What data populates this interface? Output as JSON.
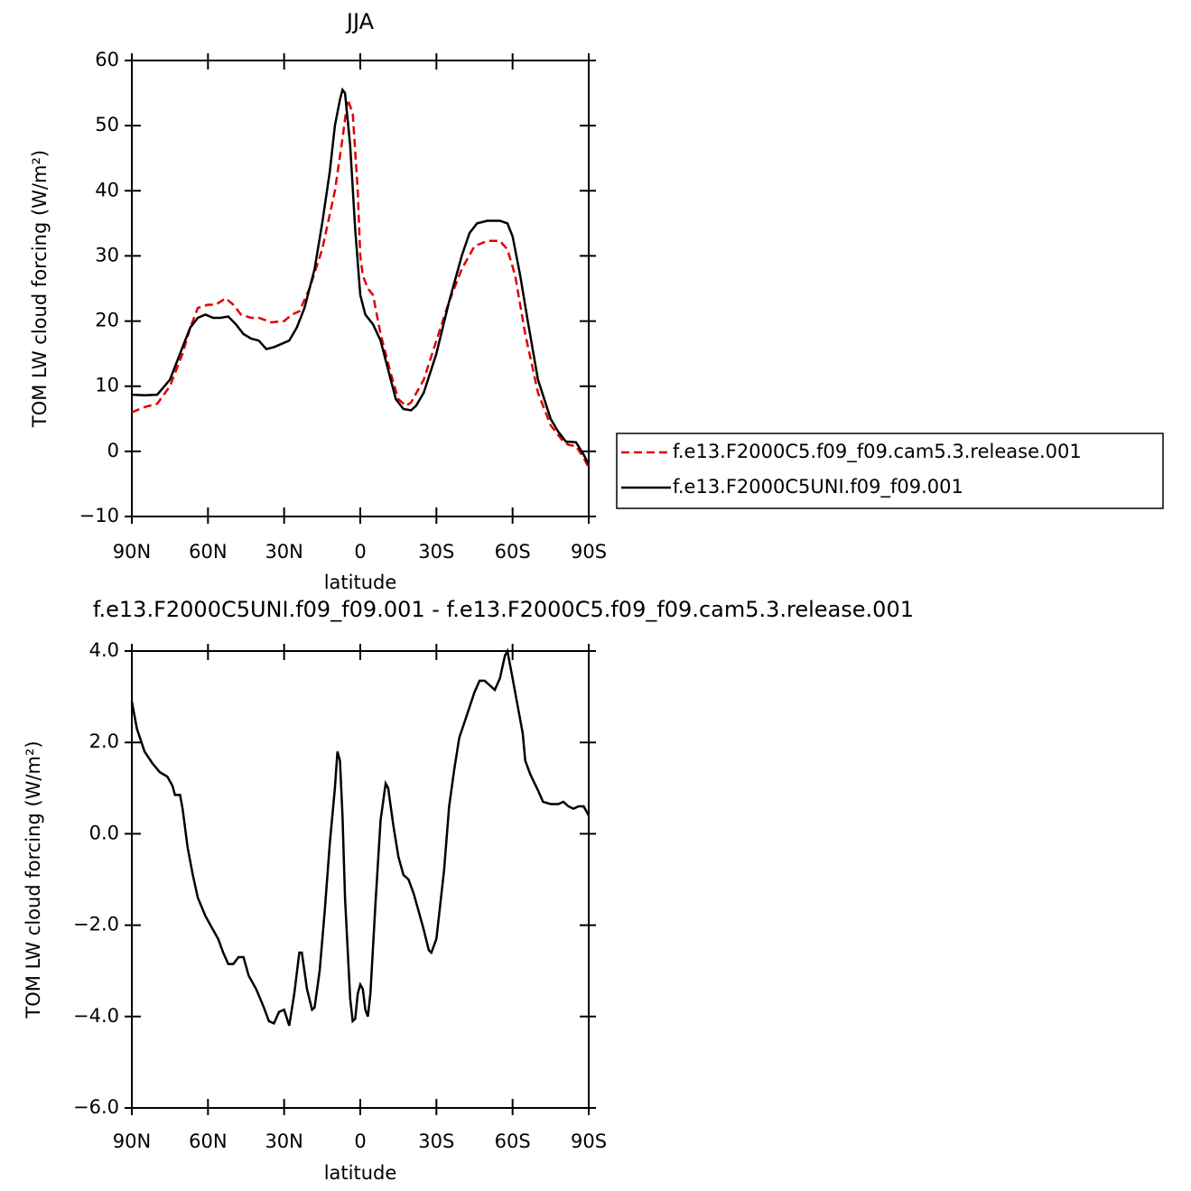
{
  "chart_data": [
    {
      "type": "line",
      "title": "JJA",
      "x_label": "latitude",
      "y_label": "TOM LW cloud forcing (W/m²)",
      "xlim": [
        90,
        -90
      ],
      "xticks": [
        {
          "value": 90,
          "label": "90N"
        },
        {
          "value": 60,
          "label": "60N"
        },
        {
          "value": 30,
          "label": "30N"
        },
        0,
        {
          "value": -30,
          "label": "30S"
        },
        {
          "value": -60,
          "label": "60S"
        },
        {
          "value": -90,
          "label": "90S"
        }
      ],
      "ylim": [
        -10,
        60
      ],
      "yticks": [
        {
          "value": -10,
          "label": "−10"
        },
        0,
        10,
        20,
        30,
        40,
        50,
        60
      ],
      "legend": "right",
      "series": [
        {
          "name": "f.e13.F2000C5.f09_f09.cam5.3.release.001",
          "color": "#e00000",
          "dash": true,
          "x": [
            90,
            85,
            80,
            75,
            70,
            67,
            64,
            60,
            57,
            53,
            50,
            47,
            43,
            40,
            35,
            30,
            27,
            24,
            20,
            15,
            10,
            7,
            5,
            3,
            1,
            0,
            -1,
            -3,
            -5,
            -8,
            -12,
            -15,
            -18,
            -20,
            -25,
            -30,
            -35,
            -40,
            -45,
            -50,
            -55,
            -58,
            -61,
            -65,
            -70,
            -75,
            -80,
            -82,
            -85,
            -88,
            -90
          ],
          "values": [
            6,
            6.8,
            7.3,
            10,
            15,
            19,
            22,
            22.5,
            22.5,
            23.5,
            22.5,
            21,
            20.5,
            20.5,
            19.8,
            20,
            21,
            21.5,
            25,
            31,
            40,
            48,
            54,
            52,
            40,
            30,
            27,
            25,
            24,
            18,
            12,
            8,
            7,
            7.5,
            11,
            17,
            23,
            28,
            31.5,
            32.3,
            32.3,
            31,
            27,
            18,
            9,
            4,
            1.5,
            1,
            0.8,
            -1,
            -2.5
          ]
        },
        {
          "name": "f.e13.F2000C5UNI.f09_f09.001",
          "color": "#000000",
          "dash": false,
          "x": [
            90,
            85,
            80,
            75,
            70,
            67,
            64,
            61,
            58,
            55,
            52,
            49,
            46,
            43,
            40,
            37,
            34,
            31,
            28,
            25,
            22,
            18,
            15,
            12,
            10,
            8,
            7,
            6,
            4,
            2,
            0,
            -2,
            -5,
            -8,
            -10,
            -14,
            -17,
            -20,
            -22,
            -25,
            -30,
            -35,
            -40,
            -43,
            -46,
            -50,
            -55,
            -58,
            -60,
            -63,
            -66,
            -70,
            -75,
            -78,
            -81,
            -85,
            -88,
            -90
          ],
          "values": [
            8.7,
            8.6,
            8.7,
            11,
            16,
            19,
            20.5,
            21,
            20.5,
            20.5,
            20.7,
            19.5,
            18,
            17.3,
            17,
            15.7,
            16,
            16.5,
            17,
            19,
            22,
            28,
            35,
            43,
            50,
            54,
            55.5,
            55,
            47,
            34,
            24,
            21,
            19.5,
            17,
            14,
            8,
            6.5,
            6.3,
            7,
            9,
            15,
            23,
            30,
            33.5,
            35,
            35.4,
            35.4,
            35,
            33,
            27,
            20,
            11,
            5,
            3,
            1.5,
            1.4,
            -0.5,
            -2
          ]
        }
      ]
    },
    {
      "type": "line",
      "title": "f.e13.F2000C5UNI.f09_f09.001 - f.e13.F2000C5.f09_f09.cam5.3.release.001",
      "x_label": "latitude",
      "y_label": "TOM LW cloud forcing (W/m²)",
      "xlim": [
        90,
        -90
      ],
      "xticks": [
        {
          "value": 90,
          "label": "90N"
        },
        {
          "value": 60,
          "label": "60N"
        },
        {
          "value": 30,
          "label": "30N"
        },
        0,
        {
          "value": -30,
          "label": "30S"
        },
        {
          "value": -60,
          "label": "60S"
        },
        {
          "value": -90,
          "label": "90S"
        }
      ],
      "ylim": [
        -6,
        4
      ],
      "yticks": [
        {
          "value": -6,
          "label": "−6.0"
        },
        {
          "value": -4,
          "label": "−4.0"
        },
        {
          "value": -2,
          "label": "−2.0"
        },
        {
          "value": 0,
          "label": "0.0"
        },
        {
          "value": 2,
          "label": "2.0"
        },
        {
          "value": 4,
          "label": "4.0"
        }
      ],
      "series": [
        {
          "color": "#000000",
          "dash": false,
          "x": [
            90,
            88,
            85,
            82,
            79,
            76,
            74,
            73,
            71,
            70,
            68,
            66,
            64,
            61,
            59,
            56,
            54,
            52,
            50,
            48,
            46,
            44,
            41,
            38,
            36,
            34,
            32,
            30,
            28,
            26,
            24,
            23,
            21,
            19,
            18,
            16,
            14,
            12,
            10,
            9,
            8,
            7,
            6,
            4,
            3,
            2,
            1,
            0,
            -1,
            -2,
            -3,
            -4,
            -6,
            -8,
            -10,
            -11,
            -13,
            -15,
            -17,
            -19,
            -21,
            -23,
            -25,
            -27,
            -28,
            -30,
            -33,
            -35,
            -37,
            -39,
            -42,
            -45,
            -47,
            -49,
            -51,
            -53,
            -55,
            -57,
            -58,
            -60,
            -62,
            -64,
            -65,
            -67,
            -70,
            -72,
            -75,
            -78,
            -80,
            -82,
            -84,
            -86,
            -88,
            -90
          ],
          "values": [
            2.9,
            2.3,
            1.8,
            1.55,
            1.35,
            1.25,
            1.05,
            0.85,
            0.85,
            0.55,
            -0.3,
            -0.9,
            -1.4,
            -1.8,
            -2,
            -2.3,
            -2.6,
            -2.85,
            -2.85,
            -2.7,
            -2.7,
            -3.1,
            -3.4,
            -3.8,
            -4.1,
            -4.15,
            -3.9,
            -3.85,
            -4.2,
            -3.5,
            -2.6,
            -2.6,
            -3.4,
            -3.85,
            -3.8,
            -3,
            -1.7,
            -0.2,
            1,
            1.8,
            1.6,
            0.4,
            -1.4,
            -3.6,
            -4.1,
            -4.05,
            -3.5,
            -3.3,
            -3.4,
            -3.85,
            -4,
            -3.5,
            -1.5,
            0.3,
            1.1,
            1,
            0.2,
            -0.5,
            -0.9,
            -1,
            -1.3,
            -1.7,
            -2.1,
            -2.55,
            -2.6,
            -2.3,
            -0.8,
            0.6,
            1.4,
            2.1,
            2.6,
            3.1,
            3.35,
            3.35,
            3.25,
            3.15,
            3.4,
            3.9,
            4,
            3.4,
            2.8,
            2.2,
            1.6,
            1.3,
            0.95,
            0.7,
            0.65,
            0.65,
            0.7,
            0.6,
            0.55,
            0.6,
            0.6,
            0.4
          ]
        }
      ]
    }
  ]
}
